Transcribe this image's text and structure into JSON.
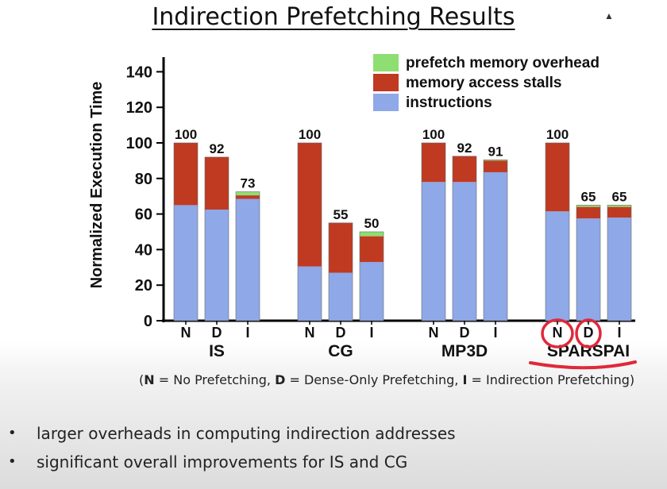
{
  "slide": {
    "title": "Indirection Prefetching Results",
    "footnote": [
      {
        "text": "(",
        "bold": false
      },
      {
        "text": "N",
        "bold": true
      },
      {
        "text": " = No Prefetching, ",
        "bold": false
      },
      {
        "text": "D",
        "bold": true
      },
      {
        "text": " = Dense-Only Prefetching, ",
        "bold": false
      },
      {
        "text": "I",
        "bold": true
      },
      {
        "text": " = Indirection Prefetching)",
        "bold": false
      }
    ],
    "bullets": [
      "larger overheads in computing indirection addresses",
      "significant overall improvements for IS and CG"
    ],
    "bullet_glyph": "•"
  },
  "chart_data": {
    "type": "bar",
    "stacked": true,
    "ylabel": "Normalized Execution Time",
    "ylim": [
      0,
      150
    ],
    "yticks": [
      0,
      20,
      40,
      60,
      80,
      100,
      120,
      140
    ],
    "grid": false,
    "legend_position": "top-right",
    "series": [
      {
        "name": "instructions",
        "color": "#8ea8e8"
      },
      {
        "name": "memory access stalls",
        "color": "#c03a22"
      },
      {
        "name": "prefetch memory overhead",
        "color": "#8ede72"
      }
    ],
    "groups": [
      {
        "name": "IS",
        "bars": [
          {
            "label": "N",
            "total_label": "100",
            "values": [
              65,
              35,
              0
            ]
          },
          {
            "label": "D",
            "total_label": "92",
            "values": [
              62.5,
              29.5,
              0
            ]
          },
          {
            "label": "I",
            "total_label": "73",
            "values": [
              68.5,
              2,
              2
            ]
          }
        ]
      },
      {
        "name": "CG",
        "bars": [
          {
            "label": "N",
            "total_label": "100",
            "values": [
              30.5,
              69.5,
              0
            ]
          },
          {
            "label": "D",
            "total_label": "55",
            "values": [
              27,
              28,
              0
            ]
          },
          {
            "label": "I",
            "total_label": "50",
            "values": [
              33,
              14.5,
              2.5
            ]
          }
        ]
      },
      {
        "name": "MP3D",
        "bars": [
          {
            "label": "N",
            "total_label": "100",
            "values": [
              78,
              22,
              0
            ]
          },
          {
            "label": "D",
            "total_label": "92",
            "values": [
              78,
              14.5,
              0
            ]
          },
          {
            "label": "I",
            "total_label": "91",
            "values": [
              83.5,
              6.5,
              0.5
            ]
          }
        ]
      },
      {
        "name": "SPARSPAK",
        "visible_name": "SPARSPAI",
        "bars": [
          {
            "label": "N",
            "total_label": "100",
            "values": [
              61.5,
              38.5,
              0
            ]
          },
          {
            "label": "D",
            "total_label": "65",
            "values": [
              57.5,
              6.5,
              1
            ]
          },
          {
            "label": "I",
            "total_label": "65",
            "values": [
              58,
              6,
              1
            ]
          }
        ]
      }
    ],
    "annotation": {
      "color": "#e0283a",
      "description_marks": [
        "circle-N",
        "circle-D",
        "underline"
      ]
    }
  }
}
